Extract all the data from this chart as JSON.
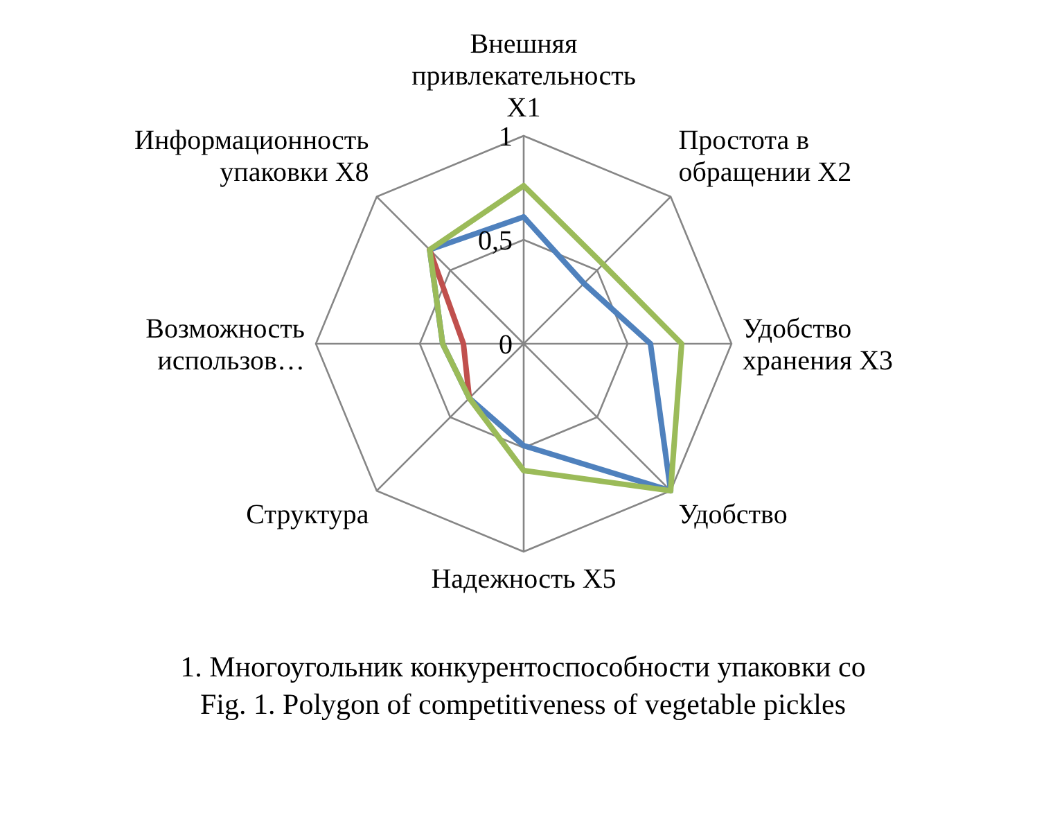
{
  "chart_data": {
    "type": "radar",
    "categories": [
      "Внешняя привлекательность X1",
      "Простота в обращении X2",
      "Удобство хранения X3",
      "Удобство",
      "Надежность X5",
      "Структура",
      "Возможность использов…",
      "Информационность упаковки X8"
    ],
    "series": [
      {
        "color": "#4f81bd",
        "values": [
          0.61,
          0.41,
          0.61,
          1,
          0.49,
          0.37,
          0.39,
          0.64
        ]
      },
      {
        "color": "#c0504d",
        "values": [
          null,
          null,
          null,
          null,
          null,
          0.37,
          0.29,
          0.64
        ]
      },
      {
        "color": "#9bbb59",
        "values": [
          0.76,
          0.54,
          0.76,
          1,
          0.61,
          0.37,
          0.39,
          0.64
        ]
      }
    ],
    "ylim": [
      0,
      1
    ],
    "yticks": [
      0,
      {
        "value": 0.5,
        "label": "0,5"
      },
      1
    ],
    "grid": true,
    "annotations": [
      "1. Многоугольник конкурентоспособности упаковки со",
      "Fig. 1. Polygon of competitiveness of vegetable pickles"
    ]
  }
}
